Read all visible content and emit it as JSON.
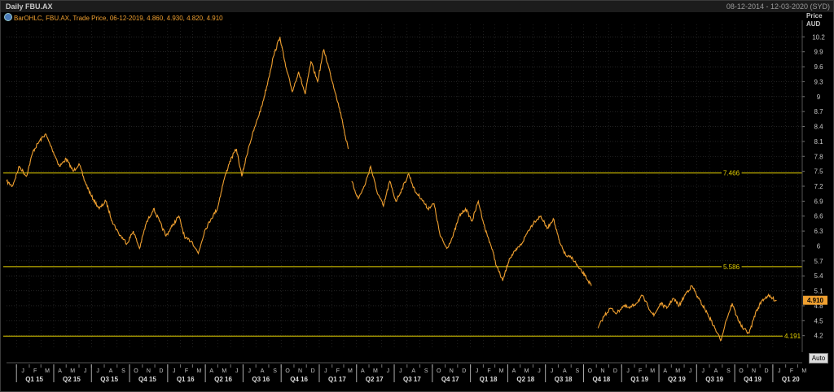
{
  "window": {
    "title": "Daily FBU.AX",
    "date_range": "08-12-2014 - 12-03-2020 (SYD)"
  },
  "legend": {
    "text": "BarOHLC, FBU.AX, Trade Price, 06-12-2019, 4.860, 4.930, 4.820, 4.910"
  },
  "axis": {
    "price_label": "Price",
    "currency_label": "AUD",
    "auto_button": "Auto"
  },
  "colors": {
    "background": "#000000",
    "grid": "#3a3a3a",
    "price": "#f0a030",
    "level_line": "#e6d200",
    "axis_text": "#c8c8c8"
  },
  "chart_data": {
    "type": "line",
    "title": "Daily FBU.AX",
    "series": [
      {
        "name": "FBU.AX",
        "points": [
          [
            "2014-12-08",
            7.3
          ],
          [
            "2014-12-22",
            7.2
          ],
          [
            "2015-01-08",
            7.6
          ],
          [
            "2015-01-25",
            7.4
          ],
          [
            "2015-02-10",
            7.9
          ],
          [
            "2015-02-25",
            8.1
          ],
          [
            "2015-03-12",
            8.25
          ],
          [
            "2015-03-28",
            7.95
          ],
          [
            "2015-04-15",
            7.6
          ],
          [
            "2015-05-01",
            7.75
          ],
          [
            "2015-05-18",
            7.5
          ],
          [
            "2015-06-01",
            7.65
          ],
          [
            "2015-06-15",
            7.3
          ],
          [
            "2015-07-01",
            7.0
          ],
          [
            "2015-07-20",
            6.75
          ],
          [
            "2015-08-05",
            6.9
          ],
          [
            "2015-08-20",
            6.5
          ],
          [
            "2015-09-05",
            6.25
          ],
          [
            "2015-09-25",
            6.05
          ],
          [
            "2015-10-10",
            6.3
          ],
          [
            "2015-10-25",
            5.95
          ],
          [
            "2015-11-10",
            6.45
          ],
          [
            "2015-11-28",
            6.75
          ],
          [
            "2015-12-12",
            6.5
          ],
          [
            "2015-12-28",
            6.2
          ],
          [
            "2016-01-12",
            6.4
          ],
          [
            "2016-01-28",
            6.6
          ],
          [
            "2016-02-12",
            6.15
          ],
          [
            "2016-02-28",
            6.1
          ],
          [
            "2016-03-15",
            5.85
          ],
          [
            "2016-03-30",
            6.3
          ],
          [
            "2016-04-15",
            6.55
          ],
          [
            "2016-04-30",
            6.75
          ],
          [
            "2016-05-15",
            7.3
          ],
          [
            "2016-05-30",
            7.7
          ],
          [
            "2016-06-15",
            7.95
          ],
          [
            "2016-06-28",
            7.4
          ],
          [
            "2016-07-15",
            8.0
          ],
          [
            "2016-07-30",
            8.4
          ],
          [
            "2016-08-15",
            8.8
          ],
          [
            "2016-08-30",
            9.3
          ],
          [
            "2016-09-12",
            9.8
          ],
          [
            "2016-09-28",
            10.2
          ],
          [
            "2016-10-12",
            9.6
          ],
          [
            "2016-10-28",
            9.1
          ],
          [
            "2016-11-12",
            9.5
          ],
          [
            "2016-11-28",
            9.05
          ],
          [
            "2016-12-12",
            9.7
          ],
          [
            "2016-12-28",
            9.3
          ],
          [
            "2017-01-12",
            9.95
          ],
          [
            "2017-01-28",
            9.45
          ],
          [
            "2017-02-10",
            9.05
          ],
          [
            "2017-02-25",
            8.55
          ],
          [
            "2017-03-05",
            8.2
          ],
          [
            "2017-03-12",
            7.95
          ],
          [
            "2017-03-20",
            7.3
          ],
          [
            "2017-04-05",
            6.95
          ],
          [
            "2017-04-20",
            7.2
          ],
          [
            "2017-05-05",
            7.6
          ],
          [
            "2017-05-20",
            7.1
          ],
          [
            "2017-06-05",
            6.8
          ],
          [
            "2017-06-20",
            7.3
          ],
          [
            "2017-07-05",
            6.9
          ],
          [
            "2017-07-20",
            7.15
          ],
          [
            "2017-08-05",
            7.45
          ],
          [
            "2017-08-20",
            7.1
          ],
          [
            "2017-09-05",
            6.95
          ],
          [
            "2017-09-20",
            6.75
          ],
          [
            "2017-10-05",
            6.85
          ],
          [
            "2017-10-20",
            6.2
          ],
          [
            "2017-11-05",
            5.95
          ],
          [
            "2017-11-20",
            6.2
          ],
          [
            "2017-12-05",
            6.6
          ],
          [
            "2017-12-20",
            6.75
          ],
          [
            "2018-01-05",
            6.5
          ],
          [
            "2018-01-20",
            6.9
          ],
          [
            "2018-02-05",
            6.35
          ],
          [
            "2018-02-20",
            6.0
          ],
          [
            "2018-03-05",
            5.6
          ],
          [
            "2018-03-20",
            5.3
          ],
          [
            "2018-04-05",
            5.75
          ],
          [
            "2018-04-20",
            5.9
          ],
          [
            "2018-05-05",
            6.05
          ],
          [
            "2018-05-20",
            6.3
          ],
          [
            "2018-06-05",
            6.5
          ],
          [
            "2018-06-20",
            6.6
          ],
          [
            "2018-07-05",
            6.35
          ],
          [
            "2018-07-20",
            6.55
          ],
          [
            "2018-08-05",
            6.05
          ],
          [
            "2018-08-20",
            5.8
          ],
          [
            "2018-09-05",
            5.75
          ],
          [
            "2018-09-20",
            5.55
          ],
          [
            "2018-10-05",
            5.4
          ],
          [
            "2018-10-20",
            5.2
          ],
          [
            "2018-11-05",
            4.35
          ],
          [
            "2018-11-20",
            4.6
          ],
          [
            "2018-12-05",
            4.75
          ],
          [
            "2018-12-20",
            4.65
          ],
          [
            "2019-01-05",
            4.8
          ],
          [
            "2019-01-20",
            4.75
          ],
          [
            "2019-02-05",
            4.85
          ],
          [
            "2019-02-20",
            5.0
          ],
          [
            "2019-03-05",
            4.8
          ],
          [
            "2019-03-20",
            4.6
          ],
          [
            "2019-04-05",
            4.85
          ],
          [
            "2019-04-20",
            4.75
          ],
          [
            "2019-05-05",
            4.95
          ],
          [
            "2019-05-20",
            4.8
          ],
          [
            "2019-06-05",
            5.05
          ],
          [
            "2019-06-20",
            5.2
          ],
          [
            "2019-07-05",
            4.95
          ],
          [
            "2019-07-20",
            4.75
          ],
          [
            "2019-08-05",
            4.5
          ],
          [
            "2019-08-20",
            4.25
          ],
          [
            "2019-08-28",
            4.1
          ],
          [
            "2019-09-10",
            4.5
          ],
          [
            "2019-09-25",
            4.85
          ],
          [
            "2019-10-05",
            4.6
          ],
          [
            "2019-10-20",
            4.35
          ],
          [
            "2019-11-05",
            4.25
          ],
          [
            "2019-11-20",
            4.65
          ],
          [
            "2019-12-06",
            4.91
          ],
          [
            "2019-12-20",
            5.0
          ],
          [
            "2020-01-10",
            4.9
          ]
        ]
      }
    ],
    "breaks": [
      [
        "2017-03-12",
        "2017-03-20"
      ],
      [
        "2018-10-20",
        "2018-11-05"
      ]
    ],
    "horizontal_lines": [
      {
        "label": "7.466",
        "value": 7.466
      },
      {
        "label": "5.586",
        "value": 5.586
      },
      {
        "label": "4.191",
        "value": 4.191
      }
    ],
    "last_price": {
      "label": "4.910",
      "value": 4.91
    },
    "y_ticks": [
      "10.2",
      "9.9",
      "9.6",
      "9.3",
      "9",
      "8.7",
      "8.4",
      "8.1",
      "7.8",
      "7.5",
      "7.2",
      "6.9",
      "6.6",
      "6.3",
      "6",
      "5.7",
      "5.4",
      "5.1",
      "4.8",
      "4.5",
      "4.2"
    ],
    "ylim": [
      3.95,
      10.45
    ],
    "xlim": [
      "2014-12-08",
      "2020-03-12"
    ],
    "x_month_labels": [
      "J",
      "F",
      "M",
      "A",
      "M",
      "J",
      "J",
      "A",
      "S",
      "O",
      "N",
      "D",
      "J",
      "F",
      "M",
      "A",
      "M",
      "J",
      "J",
      "A",
      "S",
      "O",
      "N",
      "D",
      "J",
      "F",
      "M",
      "A",
      "M",
      "J",
      "J",
      "A",
      "S",
      "O",
      "N",
      "D",
      "J",
      "F",
      "M",
      "A",
      "M",
      "J",
      "J",
      "A",
      "S",
      "O",
      "N",
      "D",
      "J",
      "F",
      "M",
      "A",
      "M",
      "J",
      "J",
      "A",
      "S",
      "O",
      "N",
      "D",
      "J",
      "F",
      "M"
    ],
    "x_month_start": "2015-01-01",
    "x_quarter_labels": [
      "Q1 15",
      "Q2 15",
      "Q3 15",
      "Q4 15",
      "Q1 16",
      "Q2 16",
      "Q3 16",
      "Q4 16",
      "Q1 17",
      "Q2 17",
      "Q3 17",
      "Q4 17",
      "Q1 18",
      "Q2 18",
      "Q3 18",
      "Q4 18",
      "Q1 19",
      "Q2 19",
      "Q3 19",
      "Q4 19",
      "Q1 20"
    ],
    "x_quarter_start": "2015-01-01",
    "grid": true,
    "legend_position": "top-left"
  }
}
